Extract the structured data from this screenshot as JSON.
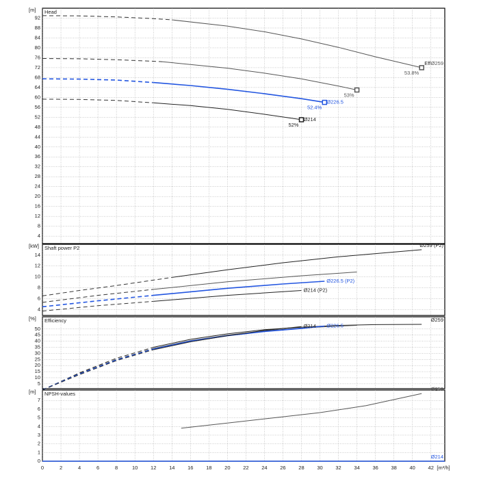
{
  "chart_data": [
    {
      "type": "line",
      "title": "Head",
      "ylabel": "[m]",
      "xlim": [
        0,
        43.5
      ],
      "ylim": [
        1,
        96
      ],
      "xticks": [
        0,
        2,
        4,
        6,
        8,
        10,
        12,
        14,
        16,
        18,
        20,
        22,
        24,
        26,
        28,
        30,
        32,
        34,
        36,
        38,
        40,
        42
      ],
      "yticks": [
        4,
        8,
        12,
        16,
        20,
        24,
        28,
        32,
        36,
        40,
        44,
        48,
        52,
        56,
        60,
        64,
        68,
        72,
        76,
        80,
        84,
        88,
        92
      ],
      "grid": true,
      "series": [
        {
          "color": "#333333",
          "dash": true,
          "x": [
            0,
            4,
            8,
            12,
            14
          ],
          "values": [
            93,
            92.9,
            92.5,
            91.8,
            91.3
          ]
        },
        {
          "name": "Ø259",
          "color": "#555555",
          "note": "53.8%",
          "marker": true,
          "marker_label": "Eff",
          "x": [
            14,
            20,
            24,
            28,
            32,
            36,
            41
          ],
          "values": [
            91.3,
            88.8,
            86.5,
            83.6,
            80.2,
            76.4,
            72
          ]
        },
        {
          "color": "#333333",
          "dash": true,
          "x": [
            0,
            4,
            8,
            12,
            13
          ],
          "values": [
            75.7,
            75.6,
            75.2,
            74.6,
            74.4
          ]
        },
        {
          "color": "#555555",
          "note": "53%",
          "marker": true,
          "x": [
            13,
            20,
            24,
            28,
            32,
            34
          ],
          "values": [
            74.4,
            71.8,
            69.8,
            67.5,
            64.6,
            63
          ]
        },
        {
          "color": "#2255e0",
          "dash": true,
          "x": [
            0,
            4,
            8,
            12
          ],
          "values": [
            67.5,
            67.4,
            67,
            66
          ]
        },
        {
          "name": "Ø226.5",
          "color": "#2255e0",
          "note": "52.4%",
          "marker": true,
          "x": [
            12,
            16,
            20,
            24,
            28,
            30.5
          ],
          "values": [
            66,
            64.8,
            63.3,
            61.5,
            59.5,
            58
          ]
        },
        {
          "color": "#333333",
          "dash": true,
          "x": [
            0,
            4,
            8,
            12
          ],
          "values": [
            59.3,
            59.2,
            58.8,
            57.8
          ]
        },
        {
          "name": "Ø214",
          "color": "#222222",
          "note": "52%",
          "marker": true,
          "x": [
            12,
            16,
            20,
            24,
            28
          ],
          "values": [
            57.8,
            56.7,
            55.2,
            53.2,
            51
          ]
        }
      ]
    },
    {
      "type": "line",
      "title": "Shaft power P2",
      "ylabel": "[kW]",
      "xlim": [
        0,
        43.5
      ],
      "ylim": [
        2.9,
        16
      ],
      "xticks": [
        0,
        2,
        4,
        6,
        8,
        10,
        12,
        14,
        16,
        18,
        20,
        22,
        24,
        26,
        28,
        30,
        32,
        34,
        36,
        38,
        40,
        42
      ],
      "yticks": [
        4,
        6,
        8,
        10,
        12,
        14
      ],
      "grid": true,
      "series": [
        {
          "color": "#333333",
          "dash": true,
          "x": [
            0,
            4,
            8,
            14
          ],
          "values": [
            6.5,
            7.5,
            8.4,
            9.9
          ]
        },
        {
          "name": "Ø259 (P2)",
          "color": "#222222",
          "x": [
            14,
            20,
            26,
            32,
            41
          ],
          "values": [
            9.9,
            11.3,
            12.6,
            13.7,
            15
          ]
        },
        {
          "color": "#333333",
          "dash": true,
          "x": [
            0,
            6,
            12
          ],
          "values": [
            5.3,
            6.6,
            7.7
          ]
        },
        {
          "color": "#555555",
          "x": [
            12,
            20,
            28,
            34
          ],
          "values": [
            7.7,
            9.1,
            10.2,
            10.9
          ]
        },
        {
          "color": "#2255e0",
          "dash": true,
          "x": [
            0,
            6,
            12
          ],
          "values": [
            4.5,
            5.6,
            6.6
          ]
        },
        {
          "name": "Ø226.5 (P2)",
          "color": "#2255e0",
          "x": [
            12,
            20,
            26,
            30.5
          ],
          "values": [
            6.6,
            7.9,
            8.7,
            9.2
          ]
        },
        {
          "color": "#333333",
          "dash": true,
          "x": [
            0,
            6,
            12
          ],
          "values": [
            3.7,
            4.7,
            5.5
          ]
        },
        {
          "name": "Ø214 (P2)",
          "color": "#222222",
          "x": [
            12,
            20,
            28
          ],
          "values": [
            5.5,
            6.6,
            7.5
          ]
        }
      ]
    },
    {
      "type": "line",
      "title": "Efficiency",
      "ylabel": "[%]",
      "xlim": [
        0,
        43.5
      ],
      "ylim": [
        1,
        60
      ],
      "xticks": [
        0,
        2,
        4,
        6,
        8,
        10,
        12,
        14,
        16,
        18,
        20,
        22,
        24,
        26,
        28,
        30,
        32,
        34,
        36,
        38,
        40,
        42
      ],
      "yticks": [
        5,
        10,
        15,
        20,
        25,
        30,
        35,
        40,
        45,
        50
      ],
      "grid": true,
      "series": [
        {
          "color": "#333333",
          "dash": true,
          "x": [
            0,
            4,
            8,
            12
          ],
          "values": [
            0,
            14,
            26,
            35
          ]
        },
        {
          "name": "Ø259",
          "color": "#222222",
          "x": [
            12,
            16,
            20,
            24,
            28,
            32,
            36,
            41
          ],
          "values": [
            35,
            41.5,
            46,
            49.5,
            51.5,
            53,
            53.6,
            53.8
          ]
        },
        {
          "color": "#333333",
          "dash": true,
          "x": [
            0,
            4,
            8,
            12
          ],
          "values": [
            0,
            13.5,
            25,
            34
          ]
        },
        {
          "color": "#555555",
          "x": [
            12,
            16,
            20,
            24,
            28,
            32,
            34
          ],
          "values": [
            34,
            40.5,
            45,
            48.5,
            50.8,
            52.4,
            53
          ]
        },
        {
          "color": "#2255e0",
          "dash": true,
          "x": [
            0,
            4,
            8,
            12
          ],
          "values": [
            0,
            13,
            24.5,
            33.5
          ]
        },
        {
          "name": "Ø226.5",
          "color": "#2255e0",
          "x": [
            12,
            16,
            20,
            24,
            28,
            30.5
          ],
          "values": [
            33.5,
            40,
            44.5,
            48,
            50.5,
            52.4
          ]
        },
        {
          "color": "#333333",
          "dash": true,
          "x": [
            0,
            4,
            8,
            12
          ],
          "values": [
            0,
            12.5,
            24,
            33
          ]
        },
        {
          "name": "Ø214",
          "color": "#222222",
          "x": [
            12,
            16,
            20,
            24,
            28
          ],
          "values": [
            33,
            39.5,
            44.5,
            48.8,
            52
          ]
        }
      ]
    },
    {
      "type": "line",
      "title": "NPSH-values",
      "ylabel": "[m]",
      "xlabel": "[m³/h]",
      "xlim": [
        0,
        43.5
      ],
      "ylim": [
        0,
        8.2
      ],
      "xticks": [
        0,
        2,
        4,
        6,
        8,
        10,
        12,
        14,
        16,
        18,
        20,
        22,
        24,
        26,
        28,
        30,
        32,
        34,
        36,
        38,
        40,
        42
      ],
      "yticks": [
        0,
        1,
        2,
        3,
        4,
        5,
        6,
        7
      ],
      "grid": true,
      "series": [
        {
          "name": "Ø259",
          "color": "#555555",
          "x": [
            15,
            20,
            25,
            30,
            35,
            41
          ],
          "values": [
            3.8,
            4.4,
            5.0,
            5.6,
            6.4,
            7.8
          ]
        },
        {
          "name": "Ø214",
          "color": "#2255e0",
          "x": [
            0,
            43.5
          ],
          "values": [
            0,
            0
          ]
        }
      ]
    }
  ]
}
